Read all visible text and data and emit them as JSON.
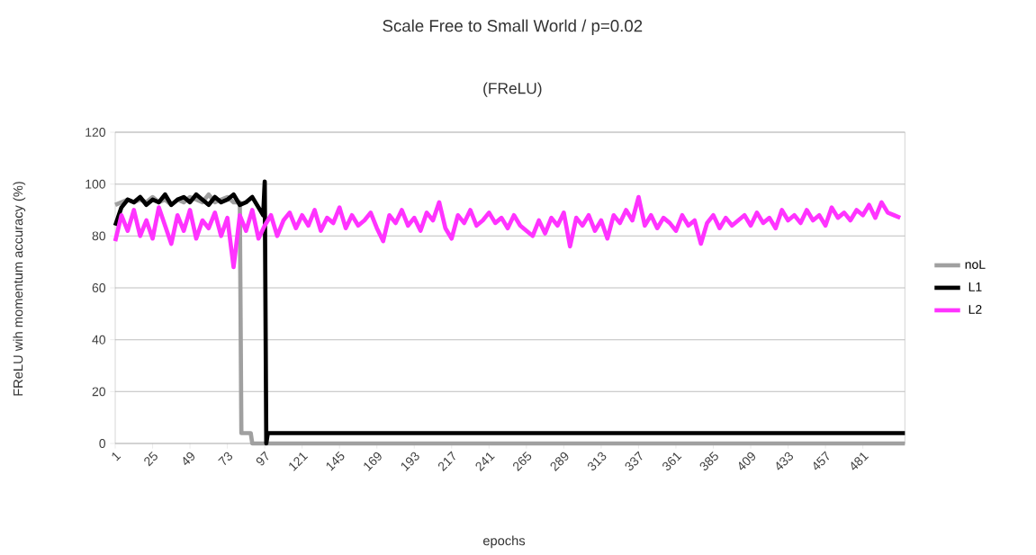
{
  "chart_data": {
    "type": "line",
    "title": "Scale Free to Small World / p=0.02",
    "subtitle": "(FReLU)",
    "xlabel": "epochs",
    "ylabel": "FReLU wih momentum accuracy (%)",
    "xlim": [
      1,
      508
    ],
    "xticks": [
      1,
      25,
      49,
      73,
      97,
      121,
      145,
      169,
      193,
      217,
      241,
      265,
      289,
      313,
      337,
      361,
      385,
      409,
      433,
      457,
      481
    ],
    "ylim": [
      0,
      120
    ],
    "yticks": [
      0,
      20,
      40,
      60,
      80,
      100,
      120
    ],
    "grid": "y",
    "legend": "right",
    "marker": "none",
    "line_style": "solid",
    "series": [
      {
        "name": "noL",
        "color": "#a0a0a0",
        "x": [
          1,
          5,
          9,
          13,
          17,
          21,
          25,
          29,
          33,
          37,
          41,
          45,
          49,
          53,
          57,
          61,
          65,
          69,
          73,
          77,
          81,
          82,
          88,
          89,
          508
        ],
        "values": [
          92,
          93,
          94,
          93,
          94,
          93,
          95,
          93,
          94,
          92,
          94,
          93,
          95,
          94,
          93,
          96,
          93,
          94,
          95,
          93,
          93,
          4,
          4,
          0,
          0
        ]
      },
      {
        "name": "L1",
        "color": "#000000",
        "x": [
          1,
          5,
          9,
          13,
          17,
          21,
          25,
          29,
          33,
          37,
          41,
          45,
          49,
          53,
          57,
          61,
          65,
          69,
          73,
          77,
          81,
          85,
          89,
          93,
          96,
          97,
          98,
          99,
          508
        ],
        "values": [
          84,
          91,
          94,
          93,
          95,
          92,
          94,
          93,
          96,
          92,
          94,
          95,
          93,
          96,
          94,
          92,
          95,
          93,
          94,
          96,
          92,
          93,
          95,
          91,
          88,
          101,
          0,
          4,
          4
        ]
      },
      {
        "name": "L2",
        "color": "#ff33ff",
        "x": [
          1,
          5,
          9,
          13,
          17,
          21,
          25,
          29,
          33,
          37,
          41,
          45,
          49,
          53,
          57,
          61,
          65,
          69,
          73,
          77,
          81,
          85,
          89,
          93,
          97,
          101,
          105,
          109,
          113,
          117,
          121,
          125,
          129,
          133,
          137,
          141,
          145,
          149,
          153,
          157,
          161,
          165,
          169,
          173,
          177,
          181,
          185,
          189,
          193,
          197,
          201,
          205,
          209,
          213,
          217,
          221,
          225,
          229,
          233,
          237,
          241,
          245,
          249,
          253,
          257,
          261,
          265,
          269,
          273,
          277,
          281,
          285,
          289,
          293,
          297,
          301,
          305,
          309,
          313,
          317,
          321,
          325,
          329,
          333,
          337,
          341,
          345,
          349,
          353,
          357,
          361,
          365,
          369,
          373,
          377,
          381,
          385,
          389,
          393,
          397,
          401,
          405,
          409,
          413,
          417,
          421,
          425,
          429,
          433,
          437,
          441,
          445,
          449,
          453,
          457,
          461,
          465,
          469,
          473,
          477,
          481,
          485,
          489,
          493,
          497,
          501,
          505
        ],
        "values": [
          78,
          88,
          82,
          90,
          80,
          86,
          79,
          91,
          84,
          77,
          88,
          82,
          90,
          79,
          86,
          83,
          89,
          80,
          87,
          68,
          88,
          82,
          90,
          79,
          84,
          88,
          80,
          86,
          89,
          83,
          88,
          84,
          90,
          82,
          87,
          85,
          91,
          83,
          88,
          84,
          86,
          89,
          83,
          78,
          88,
          85,
          90,
          84,
          87,
          82,
          89,
          86,
          93,
          83,
          79,
          88,
          85,
          90,
          84,
          86,
          89,
          85,
          87,
          83,
          88,
          84,
          82,
          80,
          86,
          81,
          87,
          84,
          89,
          76,
          87,
          84,
          88,
          82,
          86,
          79,
          88,
          85,
          90,
          86,
          95,
          84,
          88,
          83,
          87,
          85,
          82,
          88,
          84,
          86,
          77,
          85,
          88,
          83,
          87,
          84,
          86,
          88,
          84,
          89,
          85,
          87,
          83,
          90,
          86,
          88,
          85,
          90,
          86,
          88,
          84,
          91,
          87,
          89,
          86,
          90,
          88,
          92,
          87,
          93,
          89,
          88,
          87
        ]
      }
    ]
  }
}
